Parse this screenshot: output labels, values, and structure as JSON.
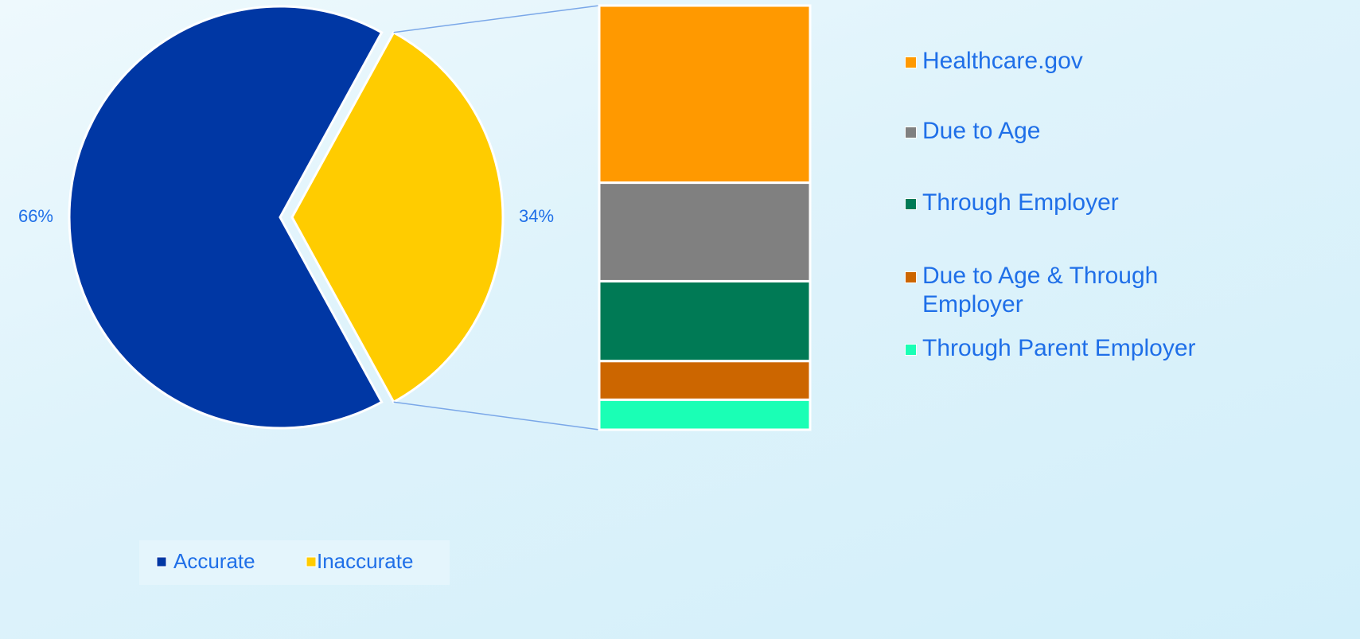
{
  "chart_data": {
    "type": "pie",
    "categories": [
      "Accurate",
      "Inaccurate"
    ],
    "values": [
      66,
      34
    ],
    "value_labels": [
      "66%",
      "34%"
    ],
    "colors": [
      "#0037a4",
      "#ffcc00"
    ],
    "breakdown": {
      "categories": [
        "Healthcare.gov",
        "Due to Age",
        "Through Employer",
        "Due to Age & Through Employer",
        "Through Parent Employer"
      ],
      "values": [
        14.2,
        7.9,
        6.4,
        3.1,
        2.4
      ],
      "colors": [
        "#ff9900",
        "#808080",
        "#007a55",
        "#cc6600",
        "#1affb5"
      ]
    }
  }
}
